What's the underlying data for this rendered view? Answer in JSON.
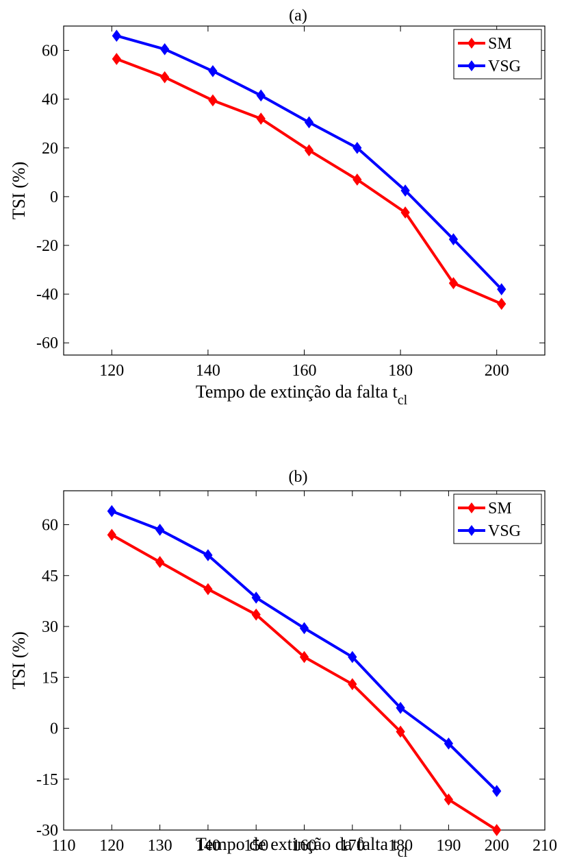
{
  "chart_data": [
    {
      "type": "line",
      "title": "(a)",
      "xlabel": "Tempo de extinção da falta t",
      "xlabel_subscript": "cl",
      "ylabel": "TSI (%)",
      "xlim": [
        110,
        210
      ],
      "ylim": [
        -65,
        70
      ],
      "xticks": [
        120,
        140,
        160,
        180,
        200
      ],
      "yticks": [
        -60,
        -40,
        -20,
        0,
        20,
        40,
        60
      ],
      "xtick_labels": [
        "120",
        "140",
        "160",
        "180",
        "200"
      ],
      "ytick_labels": [
        "-60",
        "-40",
        "-20",
        "0",
        "20",
        "40",
        "60"
      ],
      "legend_position": "top-right",
      "x": [
        121,
        131,
        141,
        151,
        161,
        171,
        181,
        191,
        201
      ],
      "series": [
        {
          "name": "SM",
          "color": "#ff0000",
          "marker": "diamond",
          "values": [
            56.5,
            49,
            39.5,
            32,
            19,
            7,
            -6.5,
            -35.5,
            -44
          ]
        },
        {
          "name": "VSG",
          "color": "#0000ff",
          "marker": "diamond",
          "values": [
            66,
            60.5,
            51.5,
            41.5,
            30.5,
            20,
            2.5,
            -17.5,
            -38
          ]
        }
      ]
    },
    {
      "type": "line",
      "title": "(b)",
      "xlabel": "Tempo de extinção da falta t",
      "xlabel_subscript": "cl",
      "ylabel": "TSI (%)",
      "xlim": [
        110,
        210
      ],
      "ylim": [
        -30,
        70
      ],
      "xticks": [
        110,
        120,
        130,
        140,
        150,
        160,
        170,
        180,
        190,
        200,
        210
      ],
      "yticks": [
        -30,
        -15,
        0,
        15,
        30,
        45,
        60
      ],
      "xtick_labels": [
        "110",
        "120",
        "130",
        "140",
        "150",
        "160",
        "170",
        "180",
        "190",
        "200",
        "210"
      ],
      "ytick_labels": [
        "-30",
        "-15",
        "0",
        "15",
        "30",
        "45",
        "60"
      ],
      "legend_position": "top-right",
      "x": [
        120,
        130,
        140,
        150,
        160,
        170,
        180,
        190,
        200
      ],
      "series": [
        {
          "name": "SM",
          "color": "#ff0000",
          "marker": "diamond",
          "values": [
            57,
            49,
            41,
            33.5,
            21,
            13,
            -1,
            -21,
            -30
          ]
        },
        {
          "name": "VSG",
          "color": "#0000ff",
          "marker": "diamond",
          "values": [
            64,
            58.5,
            51,
            38.5,
            29.5,
            21,
            6,
            -4.5,
            -18.5
          ]
        }
      ]
    }
  ]
}
